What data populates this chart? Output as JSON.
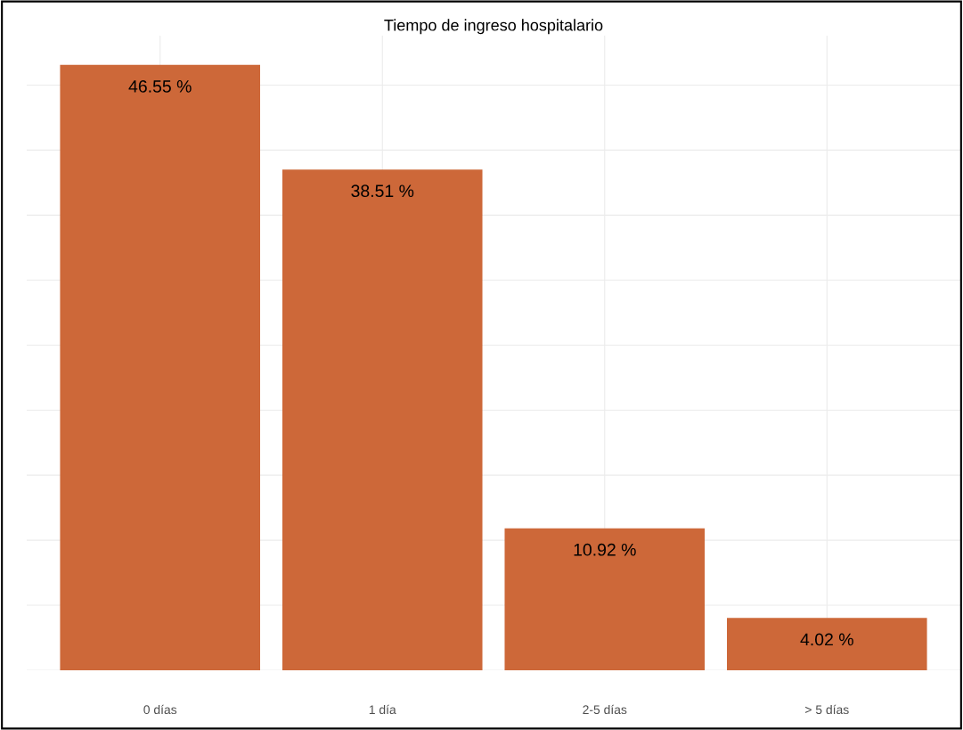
{
  "chart_data": {
    "type": "bar",
    "title": "Tiempo de ingreso hospitalario",
    "categories": [
      "0 días",
      "1 día",
      "2-5 días",
      "> 5 días"
    ],
    "values": [
      46.55,
      38.51,
      10.92,
      4.02
    ],
    "value_labels": [
      "46.55 %",
      "38.51 %",
      "10.92 %",
      "4.02 %"
    ],
    "color": "#cd6839",
    "ylim": [
      0,
      48.8
    ],
    "yticks": [
      0,
      5,
      10,
      15,
      20,
      25,
      30,
      35,
      40,
      45
    ],
    "tick_labels": "x",
    "grid": true
  }
}
